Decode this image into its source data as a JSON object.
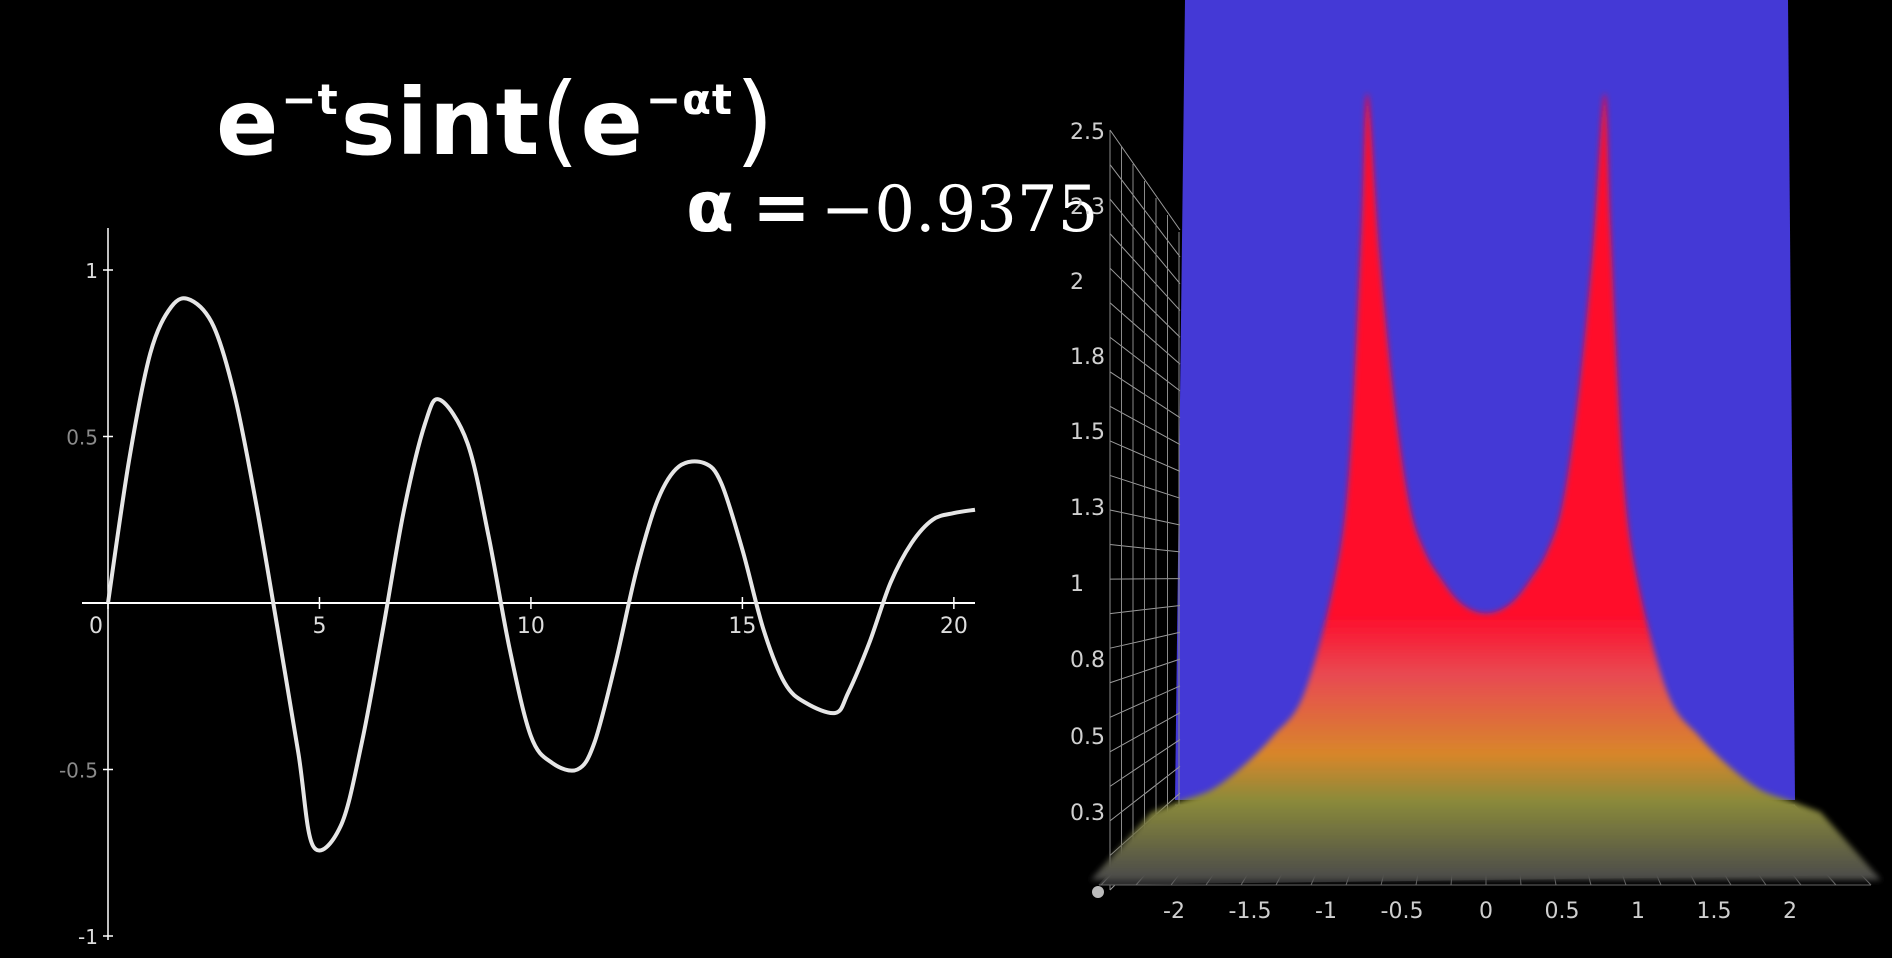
{
  "formula": {
    "base1": "e",
    "exp1": "−t",
    "func": "sint",
    "open": "(",
    "base2": "e",
    "exp2": "−αt",
    "close": ")"
  },
  "alpha_label": {
    "symbol": "α",
    "equals": "=",
    "value": "−0.9375"
  },
  "chart_data": [
    {
      "type": "line",
      "title": "",
      "xlabel": "",
      "ylabel": "",
      "xlim": [
        0,
        20.5
      ],
      "ylim": [
        -1,
        1
      ],
      "x_ticks": [
        0,
        5,
        10,
        15,
        20
      ],
      "x_tick_labels": [
        "0",
        "5",
        "10",
        "15",
        "20"
      ],
      "y_ticks": [
        1,
        0.5,
        -0.5,
        -1
      ],
      "y_tick_labels": [
        "1",
        "0.5",
        "-0.5",
        "-1"
      ],
      "grid": false,
      "line_color": "#e6e6e6",
      "series": [
        {
          "x": [
            0,
            0.5,
            1,
            1.5,
            1.95,
            2.5,
            3,
            3.5,
            4,
            4.5,
            4.85,
            5.5,
            6,
            6.5,
            7,
            7.5,
            7.85,
            8.5,
            9,
            9.5,
            10,
            10.5,
            11.1,
            11.5,
            12,
            12.5,
            13,
            13.5,
            14.1,
            14.5,
            15,
            15.5,
            16,
            16.5,
            17.2,
            17.5,
            18,
            18.5,
            19,
            19.5,
            20,
            20.5
          ],
          "y": [
            0,
            0.43,
            0.75,
            0.89,
            0.91,
            0.83,
            0.62,
            0.3,
            -0.07,
            -0.45,
            -0.73,
            -0.67,
            -0.42,
            -0.08,
            0.28,
            0.54,
            0.61,
            0.48,
            0.2,
            -0.14,
            -0.4,
            -0.48,
            -0.5,
            -0.42,
            -0.18,
            0.1,
            0.31,
            0.41,
            0.42,
            0.36,
            0.16,
            -0.08,
            -0.24,
            -0.3,
            -0.33,
            -0.27,
            -0.12,
            0.06,
            0.18,
            0.25,
            0.27,
            0.28
          ]
        }
      ]
    },
    {
      "type": "area",
      "title": "",
      "xlabel": "",
      "ylabel": "",
      "xlim": [
        -2.2,
        2.2
      ],
      "ylim": [
        0.2,
        2.6
      ],
      "x_ticks": [
        -2,
        -1.5,
        -1,
        -0.5,
        0,
        0.5,
        1,
        1.5,
        2
      ],
      "x_tick_labels": [
        "-2",
        "-1.5",
        "-1",
        "-0.5",
        "0",
        "0.5",
        "1",
        "1.5",
        "2"
      ],
      "y_ticks": [
        2.5,
        2.3,
        2,
        1.8,
        1.5,
        1.3,
        1,
        0.8,
        0.5,
        0.3
      ],
      "y_tick_labels": [
        "2.5",
        "2.3",
        "2",
        "1.8",
        "1.5",
        "1.3",
        "1",
        "0.8",
        "0.5",
        "0.3"
      ],
      "grid": true,
      "background_color": "#4439d6",
      "colors": {
        "peak": "#ff0a2a",
        "mid": "#e84a52",
        "orange": "#d8862a",
        "olive": "#8a8a3a",
        "base": "#4a4a4a"
      },
      "series": [
        {
          "x": [
            -2.2,
            -2,
            -1.8,
            -1.6,
            -1.4,
            -1.2,
            -1,
            -0.9,
            -0.82,
            -0.78,
            -0.7,
            -0.6,
            -0.5,
            -0.4,
            -0.3,
            -0.2,
            -0.1,
            0,
            0.1,
            0.2,
            0.3,
            0.4,
            0.5,
            0.6,
            0.7,
            0.78,
            0.82,
            0.9,
            1,
            1.2,
            1.4,
            1.6,
            1.8,
            2,
            2.2
          ],
          "y": [
            0.3,
            0.33,
            0.36,
            0.42,
            0.5,
            0.66,
            1.0,
            1.4,
            2.2,
            2.6,
            2.1,
            1.6,
            1.3,
            1.12,
            1.02,
            0.96,
            0.93,
            0.92,
            0.93,
            0.96,
            1.02,
            1.12,
            1.3,
            1.6,
            2.1,
            2.6,
            2.2,
            1.4,
            1.0,
            0.66,
            0.5,
            0.42,
            0.36,
            0.33,
            0.3
          ]
        }
      ]
    }
  ]
}
